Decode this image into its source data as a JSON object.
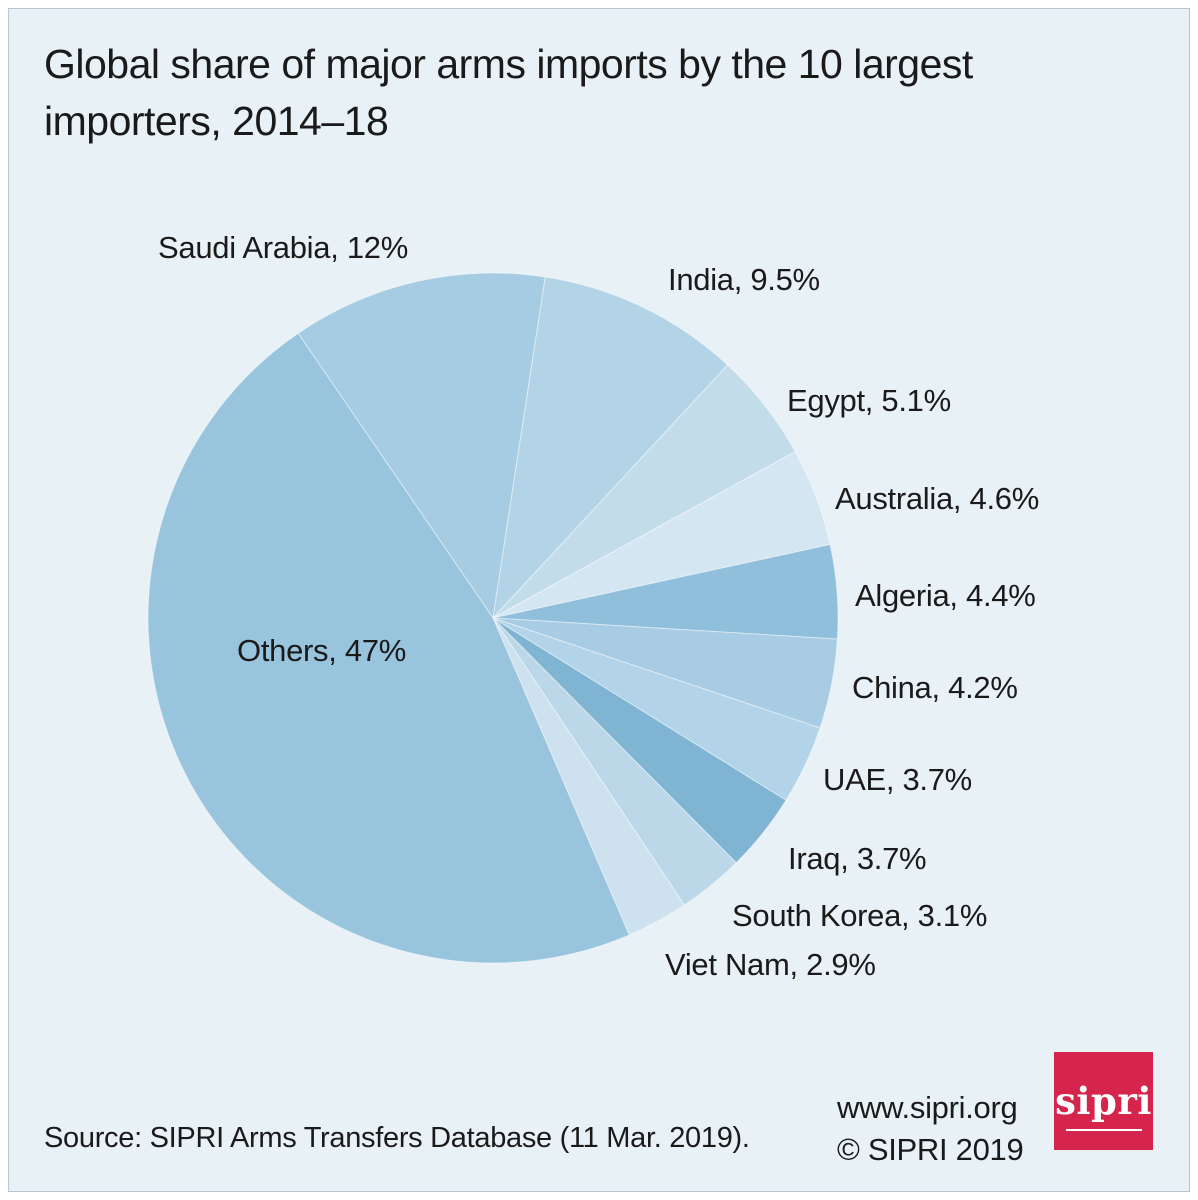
{
  "title": {
    "line1": "Global share of major arms imports by the 10 largest",
    "line2": "importers, 2014–18"
  },
  "chart_data": {
    "type": "pie",
    "title": "Global share of major arms imports by the 10 largest importers, 2014–18",
    "unit": "% of global major arms imports",
    "direction": "clockwise",
    "start_angle_deg": -34.4,
    "slices": [
      {
        "name": "Saudi Arabia",
        "value": 12,
        "label": "Saudi Arabia, 12%",
        "color": "#a6cce3"
      },
      {
        "name": "India",
        "value": 9.5,
        "label": "India, 9.5%",
        "color": "#b3d3e6"
      },
      {
        "name": "Egypt",
        "value": 5.1,
        "label": "Egypt, 5.1%",
        "color": "#c3dcea"
      },
      {
        "name": "Australia",
        "value": 4.6,
        "label": "Australia, 4.6%",
        "color": "#d4e6f1"
      },
      {
        "name": "Algeria",
        "value": 4.4,
        "label": "Algeria, 4.4%",
        "color": "#90bfdc"
      },
      {
        "name": "China",
        "value": 4.2,
        "label": "China, 4.2%",
        "color": "#a8cce3"
      },
      {
        "name": "UAE",
        "value": 3.7,
        "label": "UAE, 3.7%",
        "color": "#b2d3e8"
      },
      {
        "name": "Iraq",
        "value": 3.7,
        "label": "Iraq, 3.7%",
        "color": "#7fb5d3"
      },
      {
        "name": "South Korea",
        "value": 3.1,
        "label": "South Korea, 3.1%",
        "color": "#bcd7e8"
      },
      {
        "name": "Viet Nam",
        "value": 2.9,
        "label": "Viet Nam, 2.9%",
        "color": "#cde1ee"
      },
      {
        "name": "Others",
        "value": 47,
        "label": "Others, 47%",
        "color": "#98c4de"
      }
    ]
  },
  "footer": {
    "source": "Source: SIPRI Arms Transfers Database (11 Mar. 2019).",
    "website": "www.sipri.org",
    "copyright": "© SIPRI 2019",
    "logo_text": "sipri",
    "logo_color": "#d5254c"
  },
  "colors": {
    "background": "#e8f1f6",
    "frame": "#ffffff",
    "border_line": "#b7c6d1",
    "text": "#1a1a1a"
  }
}
